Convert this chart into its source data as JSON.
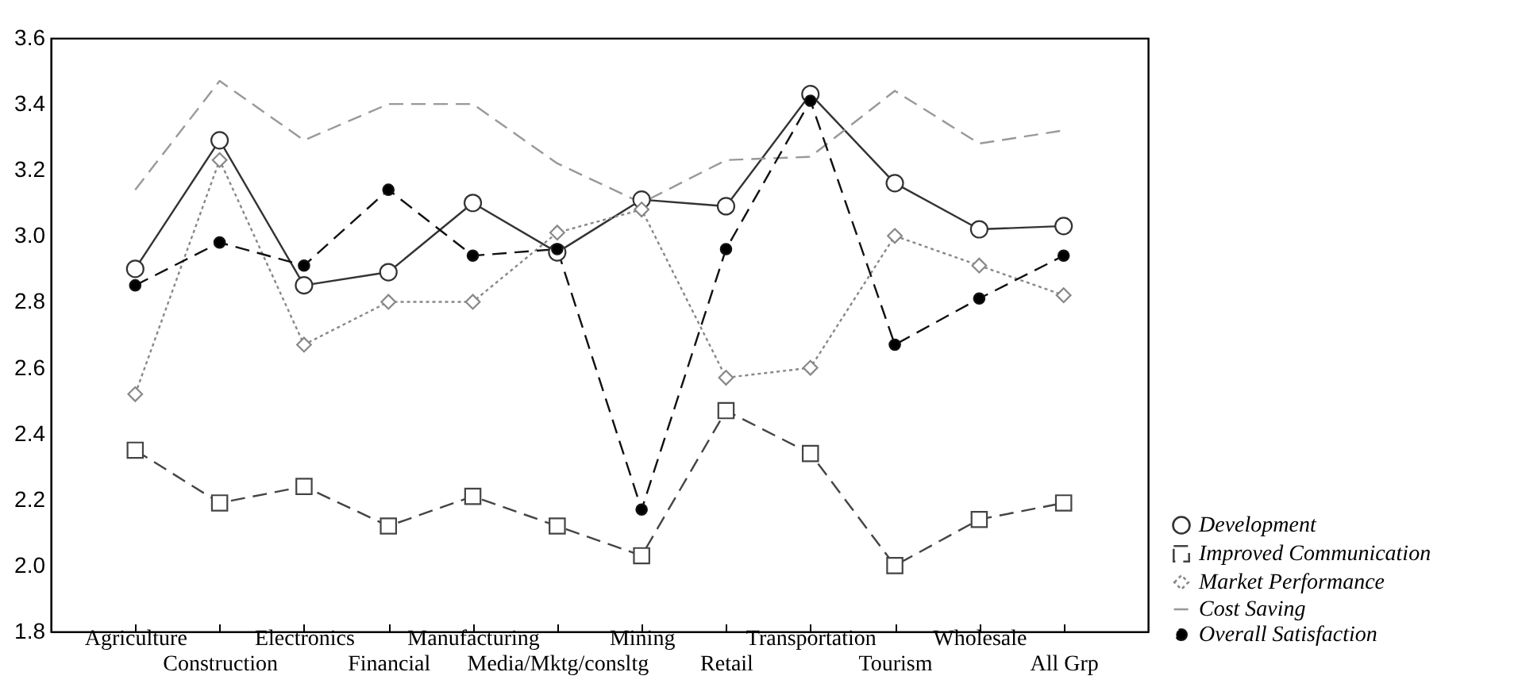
{
  "chart_data": {
    "type": "line",
    "categories": [
      "Agriculture",
      "Construction",
      "Electronics",
      "Financial",
      "Manufacturing",
      "Media/Mktg/consltg",
      "Mining",
      "Retail",
      "Transportation",
      "Tourism",
      "Wholesale",
      "All Grp"
    ],
    "series": [
      {
        "name": "Development",
        "color": "#333333",
        "marker": "circle",
        "line_style": "solid",
        "values": [
          2.9,
          3.29,
          2.85,
          2.89,
          3.1,
          2.95,
          3.11,
          3.09,
          3.43,
          3.16,
          3.02,
          3.03
        ]
      },
      {
        "name": "Improved Communication",
        "color": "#444444",
        "marker": "square",
        "line_style": "dashed",
        "values": [
          2.35,
          2.19,
          2.24,
          2.12,
          2.21,
          2.12,
          2.03,
          2.47,
          2.34,
          2.0,
          2.14,
          2.19
        ]
      },
      {
        "name": "Market Performance",
        "color": "#888888",
        "marker": "diamond",
        "line_style": "dotted",
        "values": [
          2.52,
          3.23,
          2.67,
          2.8,
          2.8,
          3.01,
          3.08,
          2.57,
          2.6,
          3.0,
          2.91,
          2.82
        ]
      },
      {
        "name": "Cost Saving",
        "color": "#999999",
        "marker": "none",
        "line_style": "dashed",
        "values": [
          3.14,
          3.47,
          3.29,
          3.4,
          3.4,
          3.22,
          3.1,
          3.23,
          3.24,
          3.44,
          3.28,
          3.32
        ]
      },
      {
        "name": "Overall Satisfaction",
        "color": "#111111",
        "marker": "filled_circle",
        "line_style": "dashed",
        "values": [
          2.85,
          2.98,
          2.91,
          3.14,
          2.94,
          2.96,
          2.17,
          2.96,
          3.41,
          2.67,
          2.81,
          2.94
        ]
      }
    ],
    "ylim": [
      1.8,
      3.6
    ],
    "yticks": [
      1.8,
      {
        "value": 2,
        "label": "2.0"
      },
      2.2,
      2.4,
      2.6,
      2.8,
      {
        "value": 3,
        "label": "3.0"
      },
      3.2,
      3.4,
      3.6
    ],
    "grid": false,
    "legend": "bottom right"
  }
}
